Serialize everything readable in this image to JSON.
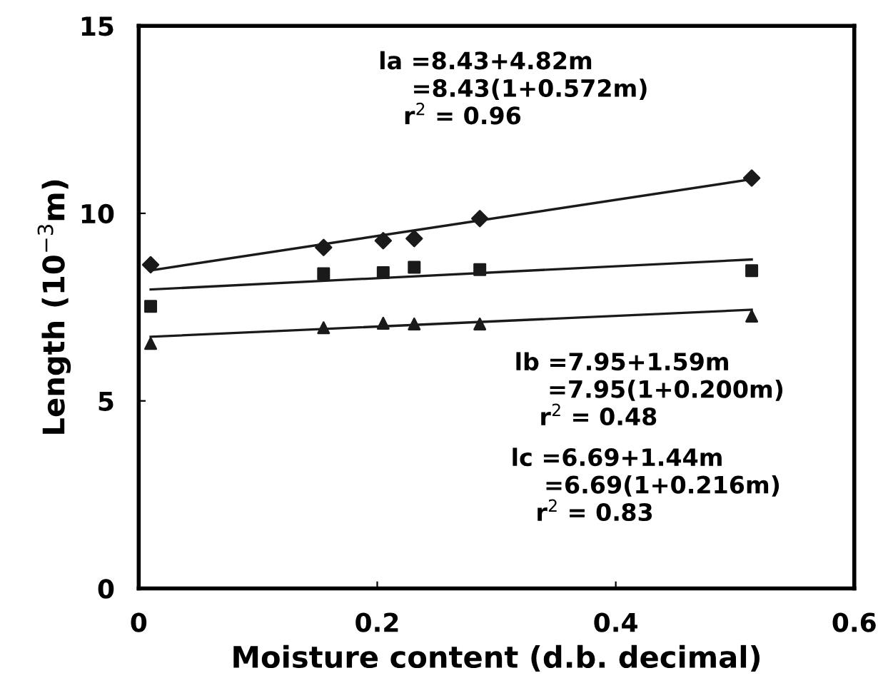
{
  "chart_data": {
    "type": "scatter",
    "xlabel": "Moisture content (d.b. decimal)",
    "ylabel": "Length (10$^{−3}$m)",
    "xlim": [
      0,
      0.6
    ],
    "ylim": [
      0,
      15
    ],
    "xticks": [
      0,
      {
        "value": 0.2,
        "label": "0.2"
      },
      {
        "value": 0.4,
        "label": "0.4"
      },
      {
        "value": 0.6,
        "label": "0.6"
      }
    ],
    "yticks": [
      0,
      5,
      10,
      15
    ],
    "grid": false,
    "legend": false,
    "series": [
      {
        "marker": "diamond",
        "color": "#1a1a1a",
        "x": [
          0.01,
          0.155,
          0.205,
          0.231,
          0.286,
          0.514
        ],
        "values": [
          8.63,
          9.09,
          9.27,
          9.33,
          9.86,
          10.94
        ]
      },
      {
        "marker": "square",
        "color": "#1a1a1a",
        "x": [
          0.01,
          0.155,
          0.205,
          0.231,
          0.286,
          0.514
        ],
        "values": [
          7.52,
          8.39,
          8.42,
          8.56,
          8.5,
          8.47
        ]
      },
      {
        "marker": "triangle",
        "color": "#1a1a1a",
        "x": [
          0.01,
          0.155,
          0.205,
          0.231,
          0.286,
          0.514
        ],
        "values": [
          6.53,
          6.95,
          7.07,
          7.05,
          7.05,
          7.26
        ]
      },
      {
        "type": "line",
        "marker": "none",
        "color": "#1a1a1a",
        "x": [
          0.01,
          0.514
        ],
        "values": [
          8.48,
          10.91
        ]
      },
      {
        "type": "line",
        "marker": "none",
        "color": "#1a1a1a",
        "x": [
          0.01,
          0.514
        ],
        "values": [
          7.97,
          8.77
        ]
      },
      {
        "type": "line",
        "marker": "none",
        "color": "#1a1a1a",
        "x": [
          0.01,
          0.514
        ],
        "values": [
          6.71,
          7.43
        ]
      }
    ],
    "annotations": [
      "la =8.43+4.82m\n    =8.43(1+0.572m)\n   r$^{2}$ = 0.96",
      "lb =7.95+1.59m\n    =7.95(1+0.200m)\n   r$^{2}$ = 0.48",
      "lc =6.69+1.44m\n    =6.69(1+0.216m)\n   r$^{2}$ = 0.83"
    ]
  }
}
